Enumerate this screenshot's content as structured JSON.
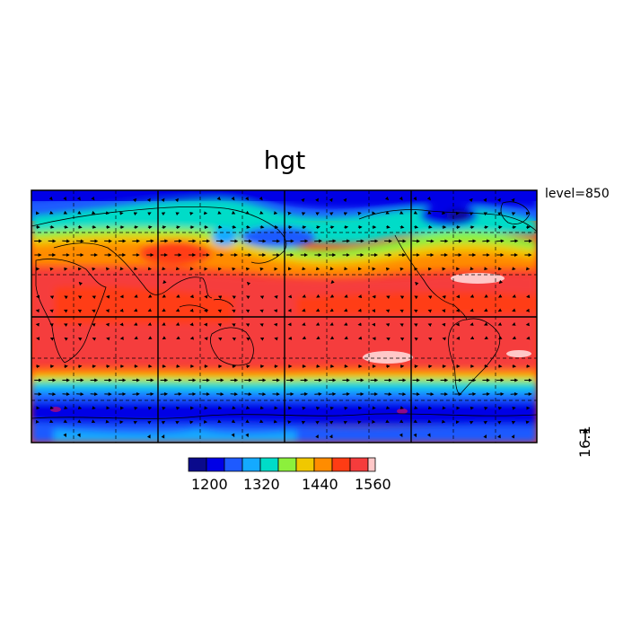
{
  "title": "hgt",
  "level_label": "level=850",
  "reference_vector": "16.1",
  "colorbar": {
    "colors": [
      "#0a0a8c",
      "#0000e6",
      "#1e5aff",
      "#14aaff",
      "#00dcc8",
      "#8cf03c",
      "#f0c800",
      "#ff8c00",
      "#ff3c14",
      "#f53c3c",
      "#ffc8c8"
    ],
    "tick_labels": [
      "1200",
      "1320",
      "1440",
      "1560"
    ]
  },
  "map": {
    "projection": "cylindrical equidistant",
    "lon_range": [
      0,
      360
    ],
    "lat_range": [
      -90,
      90
    ],
    "grid": true,
    "coastlines": true,
    "wind_vectors": true
  }
}
